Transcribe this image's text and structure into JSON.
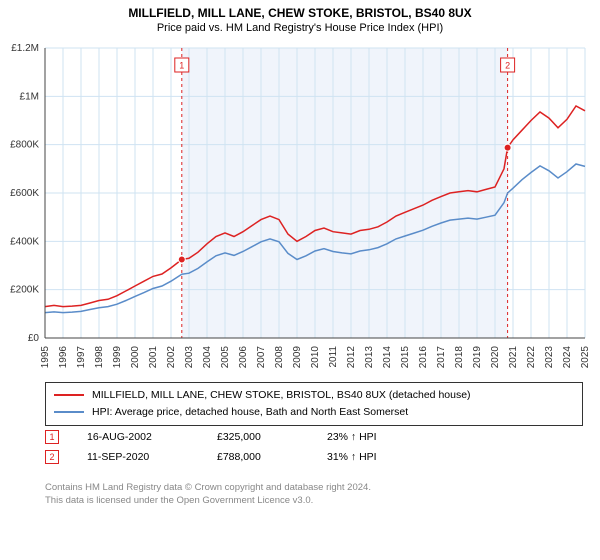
{
  "title": "MILLFIELD, MILL LANE, CHEW STOKE, BRISTOL, BS40 8UX",
  "subtitle": "Price paid vs. HM Land Registry's House Price Index (HPI)",
  "chart": {
    "type": "line",
    "background_color": "#ffffff",
    "plot_grid_color": "#cfe3f2",
    "axis_color": "#444444",
    "highlight_band_color": "#f0f4fb",
    "tick_label_fontsize": 10,
    "y": {
      "min": 0,
      "max": 1200000,
      "step": 200000,
      "ticks": [
        "£0",
        "£200K",
        "£400K",
        "£600K",
        "£800K",
        "£1M",
        "£1.2M"
      ]
    },
    "x": {
      "min": 1995,
      "max": 2025,
      "step": 1,
      "ticks": [
        "1995",
        "1996",
        "1997",
        "1998",
        "1999",
        "2000",
        "2001",
        "2002",
        "2003",
        "2004",
        "2005",
        "2006",
        "2007",
        "2008",
        "2009",
        "2010",
        "2011",
        "2012",
        "2013",
        "2014",
        "2015",
        "2016",
        "2017",
        "2018",
        "2019",
        "2020",
        "2021",
        "2022",
        "2023",
        "2024",
        "2025"
      ]
    },
    "highlight_band": {
      "x_start": 2002.6,
      "x_end": 2020.7
    },
    "series": [
      {
        "name": "MILLFIELD, MILL LANE, CHEW STOKE, BRISTOL, BS40 8UX (detached house)",
        "color": "#dd2222",
        "line_width": 1.5,
        "points": [
          [
            1995,
            130000
          ],
          [
            1995.5,
            135000
          ],
          [
            1996,
            130000
          ],
          [
            1996.5,
            132000
          ],
          [
            1997,
            135000
          ],
          [
            1997.5,
            145000
          ],
          [
            1998,
            155000
          ],
          [
            1998.5,
            160000
          ],
          [
            1999,
            175000
          ],
          [
            1999.5,
            195000
          ],
          [
            2000,
            215000
          ],
          [
            2000.5,
            235000
          ],
          [
            2001,
            255000
          ],
          [
            2001.5,
            265000
          ],
          [
            2002,
            290000
          ],
          [
            2002.6,
            325000
          ],
          [
            2003,
            330000
          ],
          [
            2003.5,
            355000
          ],
          [
            2004,
            390000
          ],
          [
            2004.5,
            420000
          ],
          [
            2005,
            435000
          ],
          [
            2005.5,
            420000
          ],
          [
            2006,
            440000
          ],
          [
            2006.5,
            465000
          ],
          [
            2007,
            490000
          ],
          [
            2007.5,
            505000
          ],
          [
            2008,
            490000
          ],
          [
            2008.5,
            430000
          ],
          [
            2009,
            400000
          ],
          [
            2009.5,
            420000
          ],
          [
            2010,
            445000
          ],
          [
            2010.5,
            455000
          ],
          [
            2011,
            440000
          ],
          [
            2011.5,
            435000
          ],
          [
            2012,
            430000
          ],
          [
            2012.5,
            445000
          ],
          [
            2013,
            450000
          ],
          [
            2013.5,
            460000
          ],
          [
            2014,
            480000
          ],
          [
            2014.5,
            505000
          ],
          [
            2015,
            520000
          ],
          [
            2015.5,
            535000
          ],
          [
            2016,
            550000
          ],
          [
            2016.5,
            570000
          ],
          [
            2017,
            585000
          ],
          [
            2017.5,
            600000
          ],
          [
            2018,
            605000
          ],
          [
            2018.5,
            610000
          ],
          [
            2019,
            605000
          ],
          [
            2019.5,
            615000
          ],
          [
            2020,
            625000
          ],
          [
            2020.5,
            700000
          ],
          [
            2020.7,
            788000
          ],
          [
            2021,
            820000
          ],
          [
            2021.5,
            860000
          ],
          [
            2022,
            900000
          ],
          [
            2022.5,
            935000
          ],
          [
            2023,
            910000
          ],
          [
            2023.5,
            870000
          ],
          [
            2024,
            905000
          ],
          [
            2024.5,
            960000
          ],
          [
            2025,
            940000
          ]
        ]
      },
      {
        "name": "HPI: Average price, detached house, Bath and North East Somerset",
        "color": "#5a8cc9",
        "line_width": 1.5,
        "points": [
          [
            1995,
            105000
          ],
          [
            1995.5,
            108000
          ],
          [
            1996,
            105000
          ],
          [
            1996.5,
            107000
          ],
          [
            1997,
            110000
          ],
          [
            1997.5,
            118000
          ],
          [
            1998,
            125000
          ],
          [
            1998.5,
            130000
          ],
          [
            1999,
            140000
          ],
          [
            1999.5,
            155000
          ],
          [
            2000,
            172000
          ],
          [
            2000.5,
            188000
          ],
          [
            2001,
            205000
          ],
          [
            2001.5,
            215000
          ],
          [
            2002,
            235000
          ],
          [
            2002.6,
            264000
          ],
          [
            2003,
            268000
          ],
          [
            2003.5,
            288000
          ],
          [
            2004,
            315000
          ],
          [
            2004.5,
            340000
          ],
          [
            2005,
            352000
          ],
          [
            2005.5,
            342000
          ],
          [
            2006,
            358000
          ],
          [
            2006.5,
            378000
          ],
          [
            2007,
            398000
          ],
          [
            2007.5,
            410000
          ],
          [
            2008,
            398000
          ],
          [
            2008.5,
            350000
          ],
          [
            2009,
            325000
          ],
          [
            2009.5,
            340000
          ],
          [
            2010,
            360000
          ],
          [
            2010.5,
            370000
          ],
          [
            2011,
            358000
          ],
          [
            2011.5,
            352000
          ],
          [
            2012,
            348000
          ],
          [
            2012.5,
            360000
          ],
          [
            2013,
            365000
          ],
          [
            2013.5,
            374000
          ],
          [
            2014,
            390000
          ],
          [
            2014.5,
            410000
          ],
          [
            2015,
            422000
          ],
          [
            2015.5,
            434000
          ],
          [
            2016,
            446000
          ],
          [
            2016.5,
            462000
          ],
          [
            2017,
            476000
          ],
          [
            2017.5,
            488000
          ],
          [
            2018,
            492000
          ],
          [
            2018.5,
            496000
          ],
          [
            2019,
            492000
          ],
          [
            2019.5,
            500000
          ],
          [
            2020,
            508000
          ],
          [
            2020.5,
            560000
          ],
          [
            2020.7,
            600000
          ],
          [
            2021,
            620000
          ],
          [
            2021.5,
            655000
          ],
          [
            2022,
            685000
          ],
          [
            2022.5,
            712000
          ],
          [
            2023,
            692000
          ],
          [
            2023.5,
            662000
          ],
          [
            2024,
            688000
          ],
          [
            2024.5,
            720000
          ],
          [
            2025,
            710000
          ]
        ]
      }
    ],
    "markers": [
      {
        "num": "1",
        "x": 2002.6,
        "y": 325000,
        "color": "#dd2222"
      },
      {
        "num": "2",
        "x": 2020.7,
        "y": 788000,
        "color": "#dd2222"
      }
    ],
    "marker_rows": [
      {
        "num": "1",
        "date": "16-AUG-2002",
        "price": "£325,000",
        "pct": "23% ↑ HPI"
      },
      {
        "num": "2",
        "date": "11-SEP-2020",
        "price": "£788,000",
        "pct": "31% ↑ HPI"
      }
    ]
  },
  "footer": [
    "Contains HM Land Registry data © Crown copyright and database right 2024.",
    "This data is licensed under the Open Government Licence v3.0."
  ]
}
